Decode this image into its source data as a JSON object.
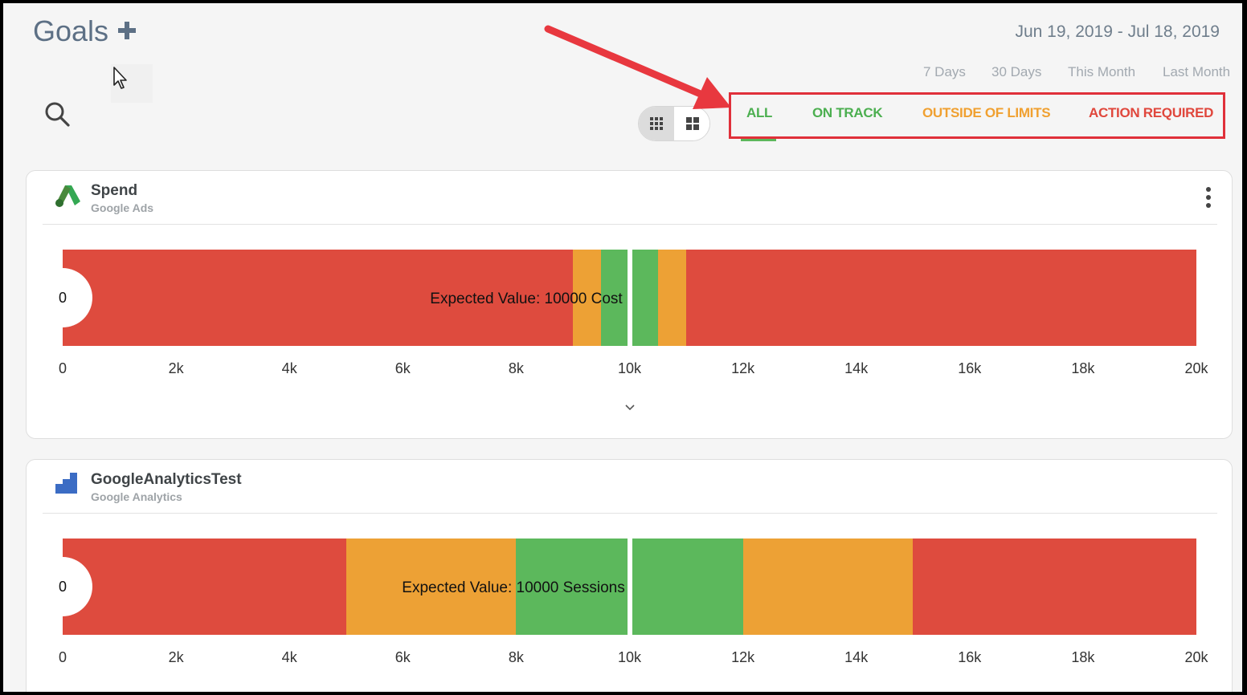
{
  "header": {
    "title": "Goals",
    "date_range": "Jun 19, 2019 - Jul 18, 2019",
    "range_options": [
      "7 Days",
      "30 Days",
      "This Month",
      "Last Month"
    ]
  },
  "filters": [
    {
      "label": "ALL",
      "color": "#4caf50"
    },
    {
      "label": "ON TRACK",
      "color": "#4caf50"
    },
    {
      "label": "OUTSIDE OF LIMITS",
      "color": "#f0a030"
    },
    {
      "label": "ACTION REQUIRED",
      "color": "#e0473c"
    }
  ],
  "colors": {
    "red": "#de4b3e",
    "orange": "#eda135",
    "green": "#5cb85c",
    "highlight_box": "#e0303a"
  },
  "goals": [
    {
      "title": "Spend",
      "source": "Google Ads",
      "source_icon": "google-ads-icon",
      "current_value": "0",
      "expected_label": "Expected Value: 10000 Cost",
      "axis_min": 0,
      "axis_max": 20000,
      "expected_value": 10000,
      "ranges": [
        {
          "from": 0,
          "to": 9000,
          "status": "red"
        },
        {
          "from": 9000,
          "to": 9500,
          "status": "orange"
        },
        {
          "from": 9500,
          "to": 10500,
          "status": "green"
        },
        {
          "from": 10500,
          "to": 11000,
          "status": "orange"
        },
        {
          "from": 11000,
          "to": 20000,
          "status": "red"
        }
      ],
      "ticks": [
        "0",
        "2k",
        "4k",
        "6k",
        "8k",
        "10k",
        "12k",
        "14k",
        "16k",
        "18k",
        "20k"
      ]
    },
    {
      "title": "GoogleAnalyticsTest",
      "source": "Google Analytics",
      "source_icon": "google-analytics-icon",
      "current_value": "0",
      "expected_label": "Expected Value: 10000 Sessions",
      "axis_min": 0,
      "axis_max": 20000,
      "expected_value": 10000,
      "ranges": [
        {
          "from": 0,
          "to": 5000,
          "status": "red"
        },
        {
          "from": 5000,
          "to": 8000,
          "status": "orange"
        },
        {
          "from": 8000,
          "to": 12000,
          "status": "green"
        },
        {
          "from": 12000,
          "to": 15000,
          "status": "orange"
        },
        {
          "from": 15000,
          "to": 20000,
          "status": "red"
        }
      ],
      "ticks": [
        "0",
        "2k",
        "4k",
        "6k",
        "8k",
        "10k",
        "12k",
        "14k",
        "16k",
        "18k",
        "20k"
      ]
    }
  ]
}
